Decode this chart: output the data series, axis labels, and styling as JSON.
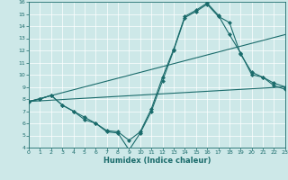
{
  "xlabel": "Humidex (Indice chaleur)",
  "xlim": [
    0,
    23
  ],
  "ylim": [
    4,
    16
  ],
  "xticks": [
    0,
    1,
    2,
    3,
    4,
    5,
    6,
    7,
    8,
    9,
    10,
    11,
    12,
    13,
    14,
    15,
    16,
    17,
    18,
    19,
    20,
    21,
    22,
    23
  ],
  "yticks": [
    4,
    5,
    6,
    7,
    8,
    9,
    10,
    11,
    12,
    13,
    14,
    15,
    16
  ],
  "bg_color": "#cde8e8",
  "line_color": "#1a6b6b",
  "lines": [
    {
      "x": [
        0,
        1,
        2,
        3,
        4,
        5,
        6,
        7,
        8,
        9,
        10,
        11,
        12,
        13,
        14,
        15,
        16,
        17,
        18,
        19,
        20,
        21,
        22,
        23
      ],
      "y": [
        7.8,
        8.0,
        8.3,
        7.5,
        7.0,
        6.3,
        6.0,
        5.3,
        5.2,
        3.8,
        5.2,
        7.0,
        9.5,
        12.0,
        14.7,
        15.2,
        15.8,
        14.8,
        14.3,
        11.7,
        10.2,
        9.8,
        9.3,
        9.0
      ],
      "markers": true
    },
    {
      "x": [
        0,
        1,
        2,
        3,
        4,
        5,
        6,
        7,
        8,
        9,
        10,
        11,
        12,
        13,
        14,
        15,
        16,
        17,
        18,
        19,
        20,
        21,
        22,
        23
      ],
      "y": [
        7.8,
        8.0,
        8.3,
        7.5,
        7.0,
        6.5,
        6.0,
        5.4,
        5.3,
        4.6,
        5.3,
        7.2,
        9.8,
        12.1,
        14.8,
        15.3,
        15.9,
        14.9,
        13.3,
        11.8,
        10.0,
        9.8,
        9.1,
        8.8
      ],
      "markers": true
    },
    {
      "x": [
        0,
        23
      ],
      "y": [
        7.8,
        9.0
      ],
      "markers": false
    },
    {
      "x": [
        0,
        23
      ],
      "y": [
        7.8,
        13.3
      ],
      "markers": false
    }
  ]
}
